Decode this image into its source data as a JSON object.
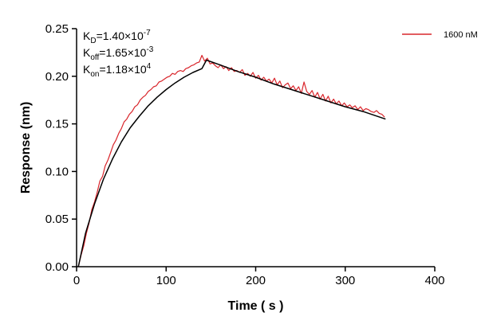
{
  "chart_data": {
    "type": "line",
    "xlabel": "Time【s】",
    "xlabel_display": "Time ( s )",
    "ylabel": "Response (nm)",
    "xlim": [
      0,
      400
    ],
    "ylim": [
      0,
      0.25
    ],
    "x_ticks": [
      "0",
      "100",
      "200",
      "300",
      "400"
    ],
    "x_tick_values": [
      0,
      100,
      200,
      300,
      400
    ],
    "y_ticks": [
      "0.00",
      "0.05",
      "0.10",
      "0.15",
      "0.20",
      "0.25"
    ],
    "y_tick_values": [
      0,
      0.05,
      0.1,
      0.15,
      0.2,
      0.25
    ],
    "grid": false,
    "legend_position": "top-right",
    "annotations": [
      {
        "base": "K",
        "sub": "D",
        "text": "=1.40×10",
        "sup": "-7"
      },
      {
        "base": "K",
        "sub": "off",
        "text": "=1.65×10",
        "sup": "-3"
      },
      {
        "base": "K",
        "sub": "on",
        "text": "=1.18×10",
        "sup": "4"
      }
    ],
    "series": [
      {
        "name": "1600 nM",
        "color": "#d9262c",
        "role": "measured",
        "x": [
          2,
          5,
          8,
          11,
          14,
          17,
          20,
          23,
          26,
          29,
          32,
          35,
          38,
          41,
          44,
          47,
          50,
          53,
          56,
          59,
          62,
          65,
          68,
          71,
          74,
          77,
          80,
          83,
          86,
          89,
          92,
          95,
          98,
          101,
          104,
          107,
          110,
          113,
          116,
          119,
          122,
          125,
          128,
          131,
          134,
          137,
          140,
          143,
          146,
          149,
          152,
          155,
          158,
          161,
          164,
          167,
          170,
          173,
          176,
          179,
          182,
          185,
          188,
          191,
          194,
          197,
          200,
          203,
          206,
          209,
          212,
          215,
          218,
          221,
          224,
          227,
          230,
          233,
          236,
          239,
          242,
          245,
          248,
          251,
          254,
          257,
          260,
          263,
          266,
          269,
          272,
          275,
          278,
          281,
          284,
          287,
          290,
          293,
          296,
          299,
          302,
          305,
          308,
          311,
          314,
          317,
          320,
          323,
          326,
          329,
          332,
          335,
          338,
          341,
          344
        ],
        "y": [
          0.0,
          0.012,
          0.022,
          0.035,
          0.046,
          0.06,
          0.068,
          0.078,
          0.09,
          0.095,
          0.106,
          0.112,
          0.12,
          0.128,
          0.133,
          0.14,
          0.145,
          0.152,
          0.155,
          0.16,
          0.163,
          0.168,
          0.17,
          0.175,
          0.178,
          0.18,
          0.184,
          0.186,
          0.189,
          0.19,
          0.194,
          0.195,
          0.197,
          0.199,
          0.2,
          0.203,
          0.202,
          0.205,
          0.206,
          0.205,
          0.208,
          0.209,
          0.211,
          0.212,
          0.214,
          0.215,
          0.222,
          0.216,
          0.219,
          0.213,
          0.214,
          0.211,
          0.209,
          0.212,
          0.208,
          0.21,
          0.206,
          0.209,
          0.205,
          0.206,
          0.204,
          0.207,
          0.201,
          0.203,
          0.2,
          0.204,
          0.198,
          0.201,
          0.196,
          0.199,
          0.195,
          0.197,
          0.193,
          0.198,
          0.191,
          0.195,
          0.188,
          0.191,
          0.193,
          0.187,
          0.19,
          0.185,
          0.189,
          0.182,
          0.194,
          0.184,
          0.181,
          0.185,
          0.178,
          0.183,
          0.176,
          0.181,
          0.174,
          0.179,
          0.172,
          0.176,
          0.171,
          0.174,
          0.169,
          0.172,
          0.168,
          0.17,
          0.167,
          0.169,
          0.165,
          0.168,
          0.164,
          0.166,
          0.165,
          0.163,
          0.162,
          0.164,
          0.161,
          0.16,
          0.157
        ]
      },
      {
        "name": "",
        "color": "#000000",
        "role": "fit",
        "x": [
          2,
          10,
          20,
          30,
          40,
          50,
          60,
          70,
          80,
          90,
          100,
          110,
          120,
          130,
          140,
          145,
          160,
          180,
          200,
          220,
          240,
          260,
          280,
          300,
          320,
          345
        ],
        "y": [
          0.0,
          0.035,
          0.066,
          0.092,
          0.113,
          0.131,
          0.146,
          0.158,
          0.169,
          0.178,
          0.186,
          0.193,
          0.199,
          0.204,
          0.208,
          0.217,
          0.212,
          0.205,
          0.199,
          0.192,
          0.186,
          0.18,
          0.174,
          0.168,
          0.163,
          0.155
        ]
      }
    ]
  }
}
